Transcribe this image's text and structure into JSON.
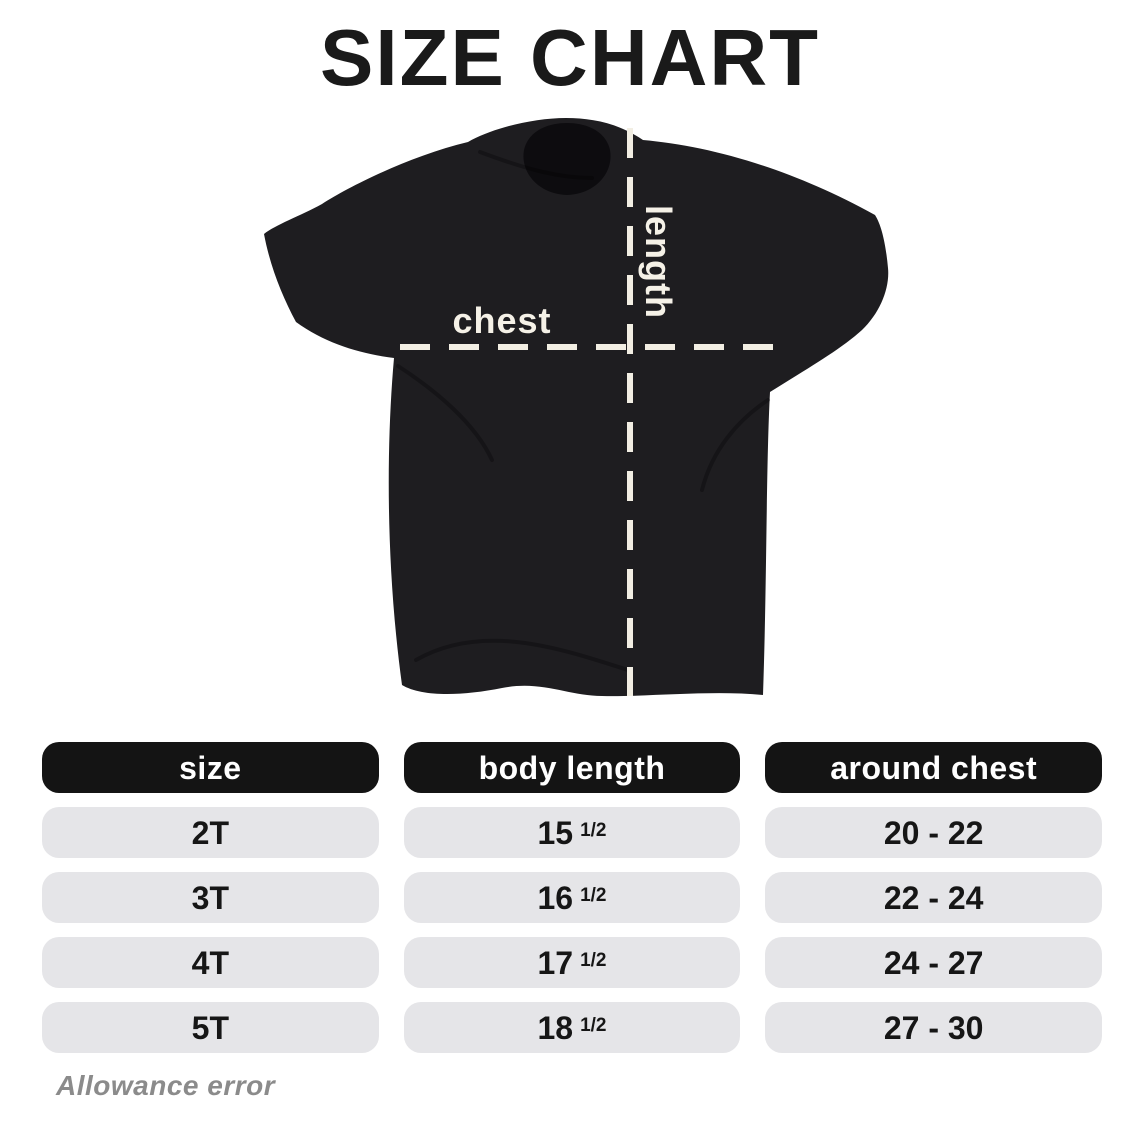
{
  "title": "SIZE CHART",
  "diagram": {
    "chest_label": "chest",
    "length_label": "length"
  },
  "table": {
    "headers": [
      "size",
      "body length",
      "around chest"
    ],
    "rows": [
      {
        "size": "2T",
        "body_length": "15",
        "body_length_frac": "1/2",
        "around_chest": "20 - 22"
      },
      {
        "size": "3T",
        "body_length": "16",
        "body_length_frac": "1/2",
        "around_chest": "22 - 24"
      },
      {
        "size": "4T",
        "body_length": "17",
        "body_length_frac": "1/2",
        "around_chest": "24 - 27"
      },
      {
        "size": "5T",
        "body_length": "18",
        "body_length_frac": "1/2",
        "around_chest": "27 - 30"
      }
    ]
  },
  "footnote": "Allowance error",
  "colors": {
    "page_bg": "#ffffff",
    "title_color": "#1a1a1a",
    "shirt_color": "#1e1d20",
    "neck_color": "#0d0c0f",
    "line_color": "#f2eee3",
    "label_color": "#f5f1e7",
    "header_bg": "#141414",
    "header_text": "#ffffff",
    "row_bg": "#e5e5e8",
    "row_text": "#161616",
    "footnote_color": "#8b8b8b"
  }
}
